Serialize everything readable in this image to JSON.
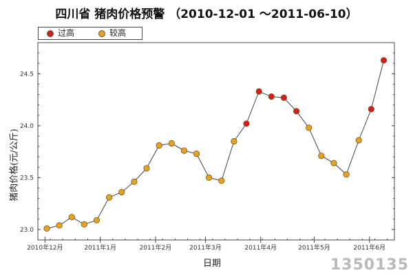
{
  "chart_data": {
    "type": "line",
    "title": "四川省 猪肉价格预警 （2010-12-01 ～2011-06-10）",
    "xlabel": "日期",
    "ylabel": "猪肉价格(元/公斤)",
    "ylim": [
      22.9,
      24.8
    ],
    "y_ticks": [
      23.0,
      23.5,
      24.0,
      24.5
    ],
    "y_tick_labels": [
      "23.0",
      "23.5",
      "24.0",
      "24.5"
    ],
    "x_domain": [
      "2010-11-27",
      "2011-06-15"
    ],
    "x_ticks": [
      "2010-12-01",
      "2011-01-01",
      "2011-02-01",
      "2011-03-01",
      "2011-04-01",
      "2011-05-01",
      "2011-06-01"
    ],
    "x_tick_labels": [
      "2010年12月",
      "2011年1月",
      "2011年2月",
      "2011年3月",
      "2011年4月",
      "2011年5月",
      "2011年6月"
    ],
    "grid": false,
    "legend_position": "top-left",
    "categories": [
      {
        "name": "过高",
        "color": "#dd1a1a"
      },
      {
        "name": "较高",
        "color": "#e8a21c"
      }
    ],
    "series": [
      {
        "x": [
          "2010-12-02",
          "2010-12-09",
          "2010-12-16",
          "2010-12-23",
          "2010-12-30",
          "2011-01-06",
          "2011-01-13",
          "2011-01-20",
          "2011-01-27",
          "2011-02-03",
          "2011-02-10",
          "2011-02-17",
          "2011-02-24",
          "2011-03-03",
          "2011-03-10",
          "2011-03-17",
          "2011-03-24",
          "2011-03-31",
          "2011-04-07",
          "2011-04-14",
          "2011-04-21",
          "2011-04-28",
          "2011-05-05",
          "2011-05-12",
          "2011-05-19",
          "2011-05-26",
          "2011-06-02",
          "2011-06-09"
        ],
        "values": [
          23.01,
          23.04,
          23.12,
          23.05,
          23.09,
          23.31,
          23.36,
          23.46,
          23.59,
          23.81,
          23.83,
          23.76,
          23.73,
          23.5,
          23.47,
          23.85,
          24.02,
          24.33,
          24.28,
          24.27,
          24.14,
          23.98,
          23.71,
          23.64,
          23.53,
          23.86,
          24.16,
          24.63
        ],
        "level": [
          "较高",
          "较高",
          "较高",
          "较高",
          "较高",
          "较高",
          "较高",
          "较高",
          "较高",
          "较高",
          "较高",
          "较高",
          "较高",
          "较高",
          "较高",
          "较高",
          "过高",
          "过高",
          "过高",
          "过高",
          "过高",
          "较高",
          "较高",
          "较高",
          "较高",
          "较高",
          "过高",
          "过高"
        ]
      }
    ],
    "colors": {
      "line": "#444444",
      "axes": "#444444",
      "marker_outline": "#6a5a2a"
    }
  },
  "legend": {
    "items": [
      {
        "label": "过高",
        "color": "#dd1a1a"
      },
      {
        "label": "较高",
        "color": "#e8a21c"
      }
    ]
  },
  "watermark": {
    "text": "1350135"
  }
}
